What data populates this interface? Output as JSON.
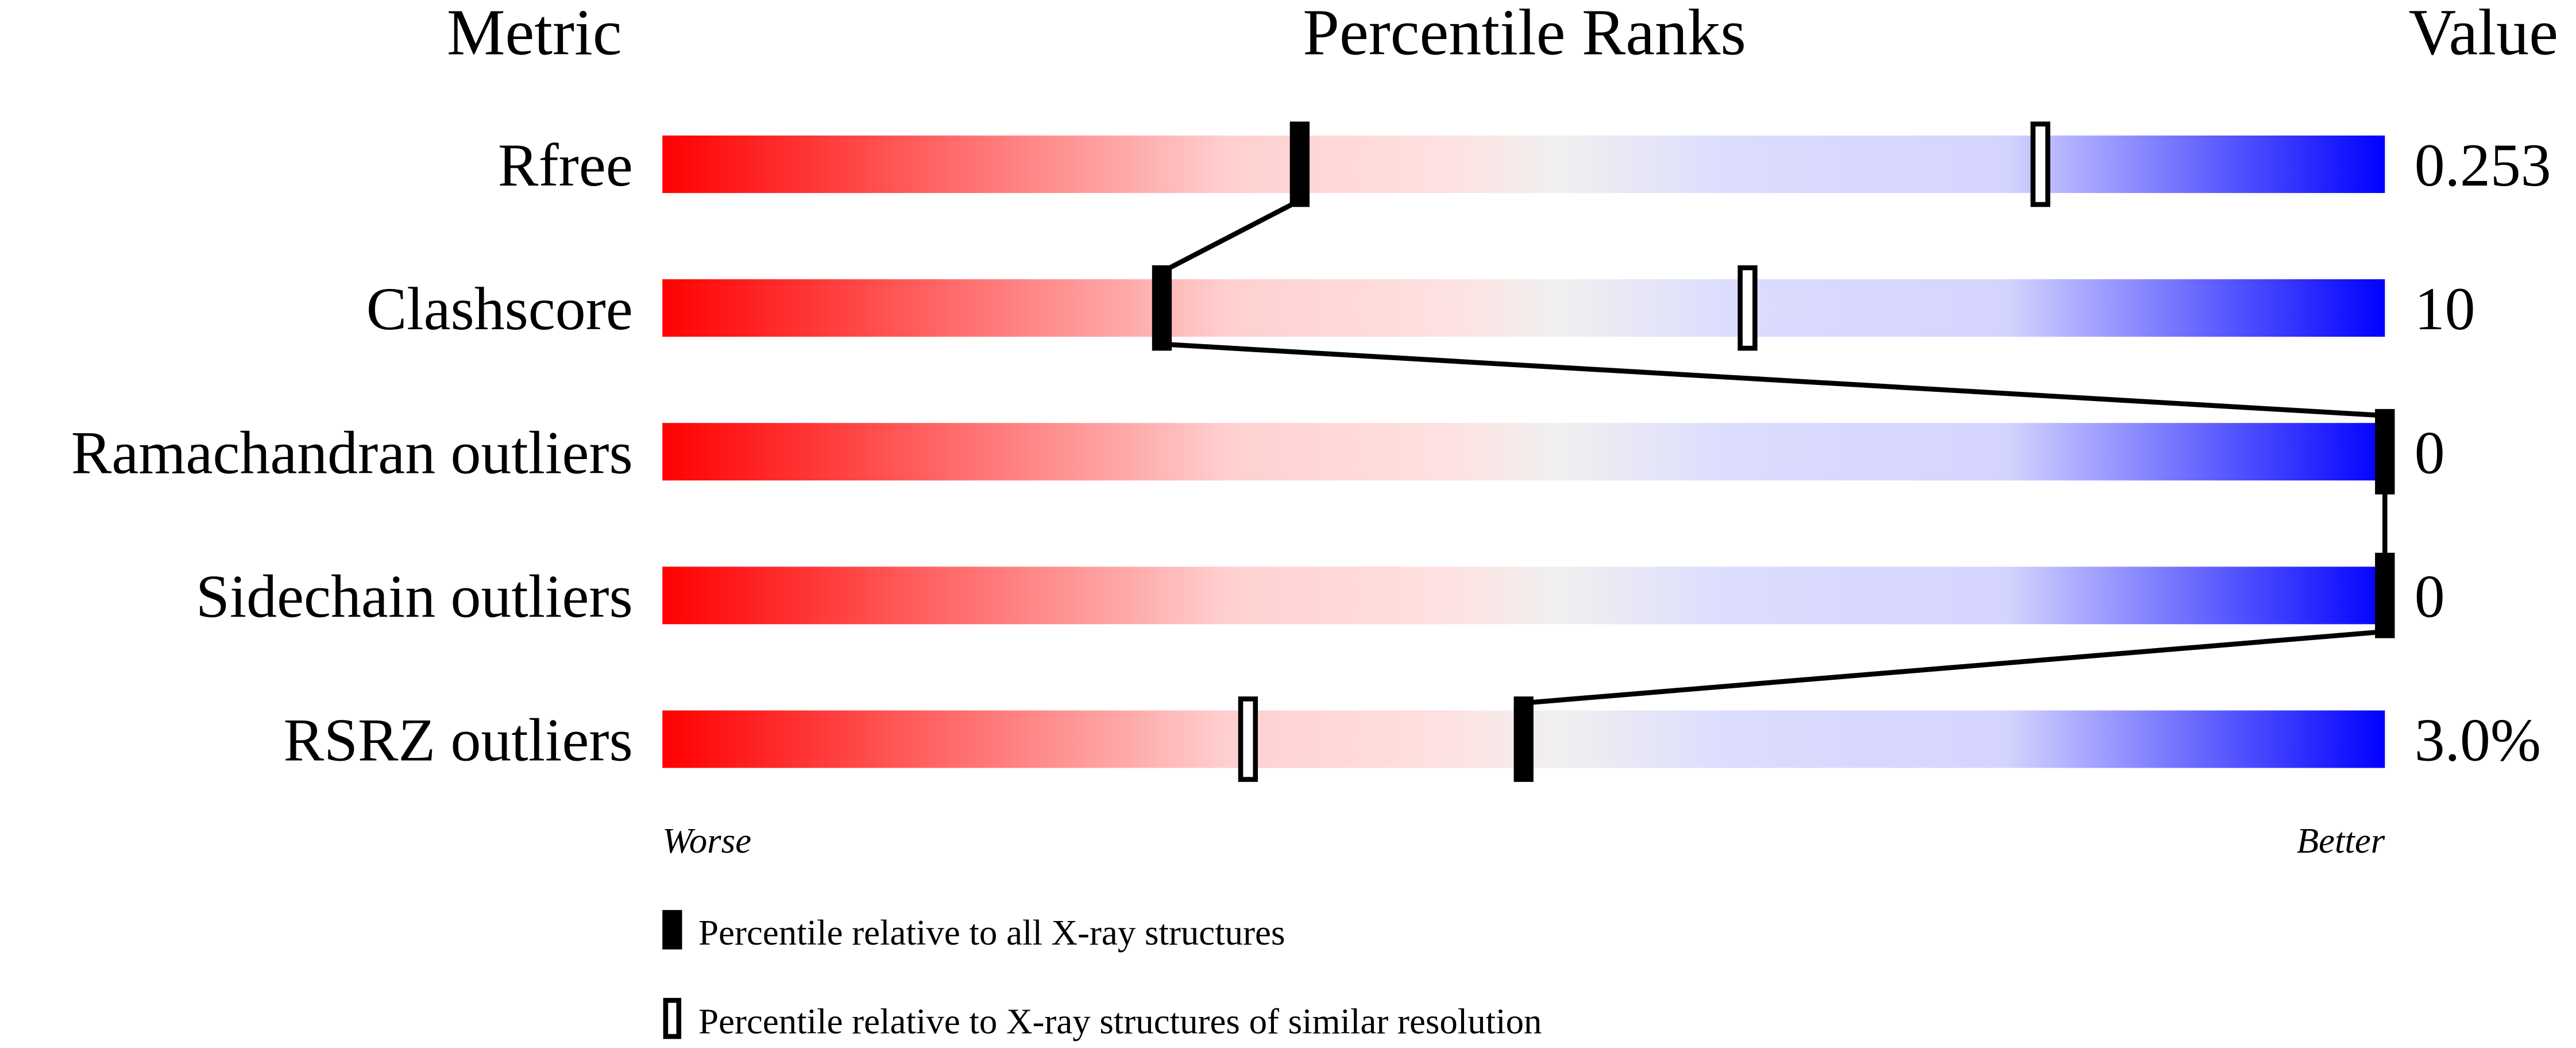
{
  "chart_data": {
    "type": "percentile-slider",
    "headers": {
      "metric": "Metric",
      "percentile": "Percentile Ranks",
      "value": "Value"
    },
    "xlim": [
      0,
      100
    ],
    "axis_labels": {
      "left": "Worse",
      "right": "Better"
    },
    "gradient_colors": {
      "worse": "#ff0000",
      "middle": "#f0f0f0",
      "better": "#0000ff"
    },
    "metrics": [
      {
        "name": "Rfree",
        "value": "0.253",
        "percentile_all": 37,
        "percentile_similar": 80
      },
      {
        "name": "Clashscore",
        "value": "10",
        "percentile_all": 29,
        "percentile_similar": 63
      },
      {
        "name": "Ramachandran outliers",
        "value": "0",
        "percentile_all": 100,
        "percentile_similar": null
      },
      {
        "name": "Sidechain outliers",
        "value": "0",
        "percentile_all": 100,
        "percentile_similar": null
      },
      {
        "name": "RSRZ outliers",
        "value": "3.0%",
        "percentile_all": 50,
        "percentile_similar": 34
      }
    ],
    "legend": [
      {
        "marker": "filled",
        "label": "Percentile relative to all X-ray structures"
      },
      {
        "marker": "open",
        "label": "Percentile relative to X-ray structures of similar resolution"
      }
    ]
  }
}
